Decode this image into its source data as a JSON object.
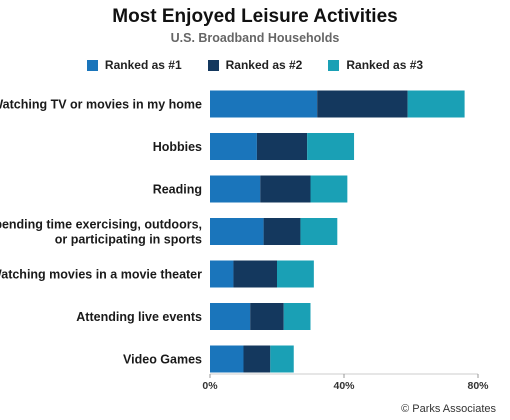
{
  "chart_data": {
    "type": "bar",
    "orientation": "horizontal",
    "stacked": true,
    "title": "Most Enjoyed Leisure Activities",
    "subtitle": "U.S. Broadband Households",
    "categories": [
      [
        "Watching TV or movies in my home"
      ],
      [
        "Hobbies"
      ],
      [
        "Reading"
      ],
      [
        "Spending time exercising, outdoors,",
        "or participating in sports"
      ],
      [
        "Watching movies in a movie theater"
      ],
      [
        "Attending live events"
      ],
      [
        "Video Games"
      ]
    ],
    "series": [
      {
        "name": "Ranked as #1",
        "color": "#1a75bb",
        "values": [
          32,
          14,
          15,
          16,
          7,
          12,
          10
        ]
      },
      {
        "name": "Ranked as #2",
        "color": "#14385e",
        "values": [
          27,
          15,
          15,
          11,
          13,
          10,
          8
        ]
      },
      {
        "name": "Ranked as #3",
        "color": "#1aa0b5",
        "values": [
          17,
          14,
          11,
          11,
          11,
          8,
          7
        ]
      }
    ],
    "xlim": [
      0,
      80
    ],
    "x_ticks": [
      "0%",
      "40%",
      "80%"
    ],
    "x_tick_values": [
      0,
      40,
      80
    ],
    "legend_position": "top",
    "grid": false
  },
  "credit": "© Parks Associates"
}
